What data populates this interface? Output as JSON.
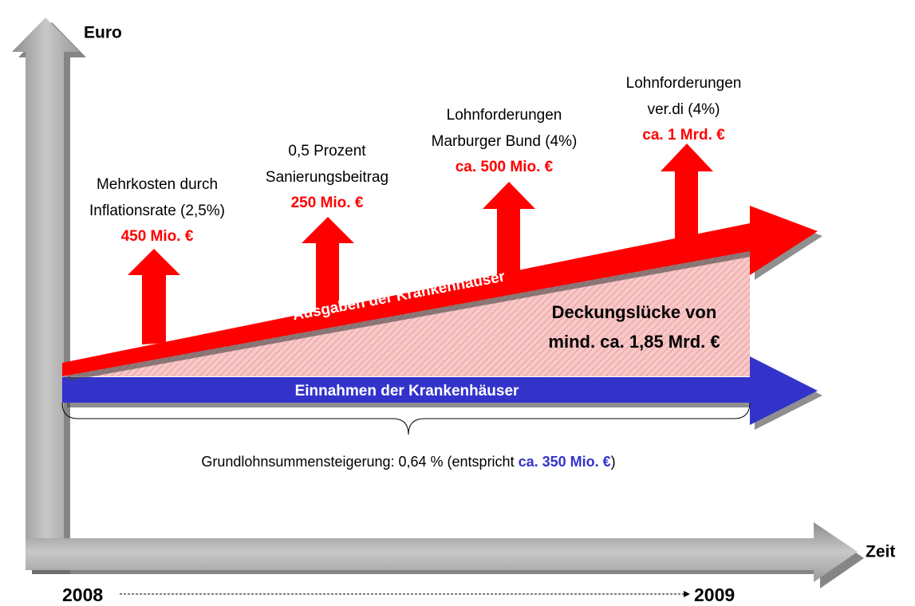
{
  "axes": {
    "y_label": "Euro",
    "x_label": "Zeit",
    "start": "2008",
    "end": "2009"
  },
  "factors": [
    {
      "lines": [
        "Mehrkosten durch",
        "Inflationsrate (2,5%)"
      ],
      "amount": "450 Mio. €"
    },
    {
      "lines": [
        "0,5 Prozent",
        "Sanierungsbeitrag"
      ],
      "amount": "250 Mio. €"
    },
    {
      "lines": [
        "Lohnforderungen",
        "Marburger Bund (4%)"
      ],
      "amount": "ca. 500 Mio. €"
    },
    {
      "lines": [
        "Lohnforderungen",
        "ver.di (4%)"
      ],
      "amount": "ca. 1 Mrd. €"
    }
  ],
  "expenses_arrow": {
    "label": "Ausgaben der Krankenhäuser"
  },
  "income_arrow": {
    "label": "Einnahmen der Krankenhäuser"
  },
  "gap": {
    "lines": [
      "Deckungslücke von",
      "mind. ca. 1,85 Mrd. €"
    ]
  },
  "brace": {
    "prefix": "Grundlohnsummensteigerung: 0,64 % (entspricht ",
    "highlight": "ca. 350 Mio. €",
    "suffix": ")"
  }
}
